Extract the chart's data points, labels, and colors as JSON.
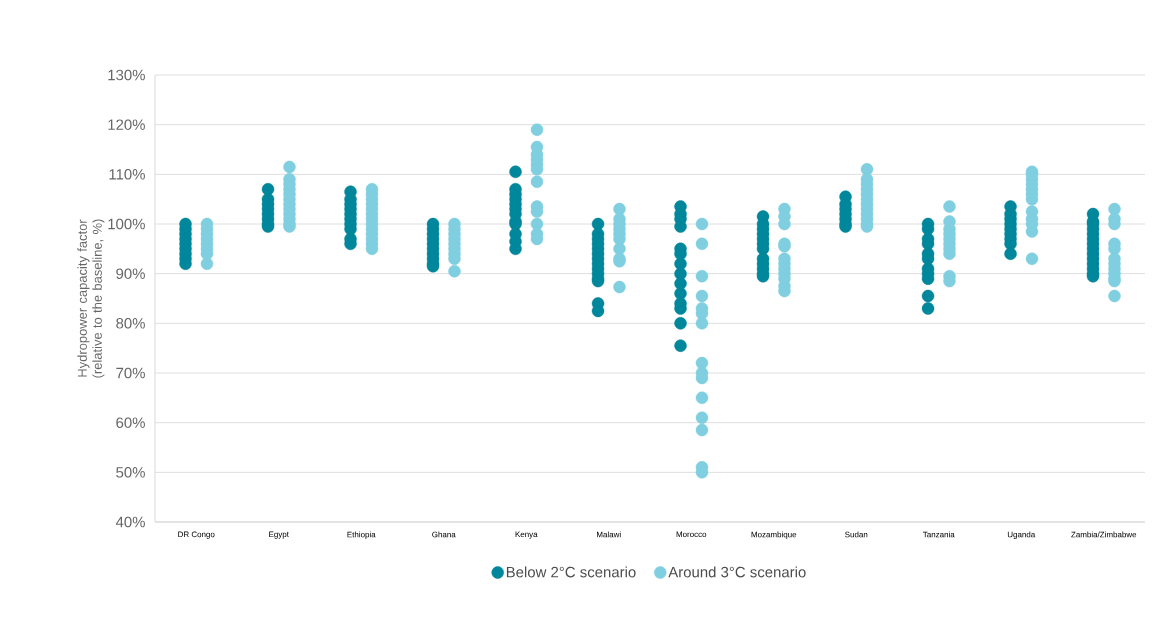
{
  "chart_data": {
    "type": "scatter",
    "ylabel": "Hydropower capacity factor (relative to the baseline, %)",
    "categories": [
      "DR Congo",
      "Egypt",
      "Ethiopia",
      "Ghana",
      "Kenya",
      "Malawi",
      "Morocco",
      "Mozambique",
      "Sudan",
      "Tanzania",
      "Uganda",
      "Zambia/Zimbabwe"
    ],
    "ylim": [
      40,
      130
    ],
    "yticks": [
      {
        "value": 40,
        "label": "40%"
      },
      {
        "value": 50,
        "label": "50%"
      },
      {
        "value": 60,
        "label": "60%"
      },
      {
        "value": 70,
        "label": "70%"
      },
      {
        "value": 80,
        "label": "80%"
      },
      {
        "value": 90,
        "label": "90%"
      },
      {
        "value": 100,
        "label": "100%"
      },
      {
        "value": 110,
        "label": "110%"
      },
      {
        "value": 120,
        "label": "120%"
      },
      {
        "value": 130,
        "label": "130%"
      }
    ],
    "grid": "y",
    "legend": "bottom",
    "marker": "circle",
    "series": [
      {
        "name": "Below 2°C scenario",
        "color": "#00879b",
        "x": [
          "DR Congo",
          "DR Congo",
          "DR Congo",
          "DR Congo",
          "DR Congo",
          "DR Congo",
          "DR Congo",
          "DR Congo",
          "DR Congo",
          "Egypt",
          "Egypt",
          "Egypt",
          "Egypt",
          "Egypt",
          "Egypt",
          "Egypt",
          "Egypt",
          "Ethiopia",
          "Ethiopia",
          "Ethiopia",
          "Ethiopia",
          "Ethiopia",
          "Ethiopia",
          "Ethiopia",
          "Ethiopia",
          "Ethiopia",
          "Ethiopia",
          "Ghana",
          "Ghana",
          "Ghana",
          "Ghana",
          "Ghana",
          "Ghana",
          "Ghana",
          "Ghana",
          "Ghana",
          "Ghana",
          "Kenya",
          "Kenya",
          "Kenya",
          "Kenya",
          "Kenya",
          "Kenya",
          "Kenya",
          "Kenya",
          "Kenya",
          "Kenya",
          "Kenya",
          "Kenya",
          "Malawi",
          "Malawi",
          "Malawi",
          "Malawi",
          "Malawi",
          "Malawi",
          "Malawi",
          "Malawi",
          "Malawi",
          "Malawi",
          "Malawi",
          "Malawi",
          "Malawi",
          "Malawi",
          "Morocco",
          "Morocco",
          "Morocco",
          "Morocco",
          "Morocco",
          "Morocco",
          "Morocco",
          "Morocco",
          "Morocco",
          "Morocco",
          "Morocco",
          "Morocco",
          "Morocco",
          "Morocco",
          "Mozambique",
          "Mozambique",
          "Mozambique",
          "Mozambique",
          "Mozambique",
          "Mozambique",
          "Mozambique",
          "Mozambique",
          "Mozambique",
          "Mozambique",
          "Mozambique",
          "Mozambique",
          "Sudan",
          "Sudan",
          "Sudan",
          "Sudan",
          "Sudan",
          "Sudan",
          "Sudan",
          "Tanzania",
          "Tanzania",
          "Tanzania",
          "Tanzania",
          "Tanzania",
          "Tanzania",
          "Tanzania",
          "Tanzania",
          "Tanzania",
          "Tanzania",
          "Tanzania",
          "Uganda",
          "Uganda",
          "Uganda",
          "Uganda",
          "Uganda",
          "Uganda",
          "Uganda",
          "Uganda",
          "Uganda",
          "Zambia/Zimbabwe",
          "Zambia/Zimbabwe",
          "Zambia/Zimbabwe",
          "Zambia/Zimbabwe",
          "Zambia/Zimbabwe",
          "Zambia/Zimbabwe",
          "Zambia/Zimbabwe",
          "Zambia/Zimbabwe",
          "Zambia/Zimbabwe",
          "Zambia/Zimbabwe",
          "Zambia/Zimbabwe",
          "Zambia/Zimbabwe",
          "Zambia/Zimbabwe",
          "Zambia/Zimbabwe"
        ],
        "values": [
          100,
          99,
          98,
          97,
          96,
          95,
          94,
          93,
          92,
          107,
          105,
          104,
          103,
          102,
          101,
          100,
          99.5,
          106.5,
          105,
          104,
          103,
          102,
          101,
          100,
          99,
          97,
          96,
          100,
          99,
          98,
          97,
          96,
          95,
          94,
          93,
          92,
          91.5,
          110.5,
          107,
          106,
          105,
          104,
          103,
          102,
          100.5,
          100,
          98,
          96.5,
          95,
          100,
          98,
          97,
          96,
          95,
          94,
          93,
          92,
          91,
          90,
          89,
          88.5,
          84,
          82.5,
          103.5,
          102,
          101,
          99.5,
          95,
          94,
          92,
          90,
          88,
          86,
          84,
          83,
          80,
          75.5,
          101.5,
          100,
          99,
          98,
          97,
          96,
          95,
          93,
          92,
          91,
          90,
          89.5,
          105.5,
          104,
          103,
          102,
          101,
          100,
          99.5,
          100,
          99,
          97,
          96,
          94,
          93,
          91,
          90,
          89,
          85.5,
          83,
          103.5,
          102,
          101,
          100,
          99,
          98,
          97,
          96,
          94,
          102,
          100.5,
          100,
          99,
          98,
          97,
          96,
          95,
          94,
          93,
          92,
          91,
          90,
          89.5
        ]
      },
      {
        "name": "Around 3°C scenario",
        "color": "#7fcfe0",
        "x": [
          "DR Congo",
          "DR Congo",
          "DR Congo",
          "DR Congo",
          "DR Congo",
          "DR Congo",
          "DR Congo",
          "DR Congo",
          "Egypt",
          "Egypt",
          "Egypt",
          "Egypt",
          "Egypt",
          "Egypt",
          "Egypt",
          "Egypt",
          "Egypt",
          "Egypt",
          "Egypt",
          "Egypt",
          "Ethiopia",
          "Ethiopia",
          "Ethiopia",
          "Ethiopia",
          "Ethiopia",
          "Ethiopia",
          "Ethiopia",
          "Ethiopia",
          "Ethiopia",
          "Ethiopia",
          "Ethiopia",
          "Ethiopia",
          "Ethiopia",
          "Ghana",
          "Ghana",
          "Ghana",
          "Ghana",
          "Ghana",
          "Ghana",
          "Ghana",
          "Ghana",
          "Ghana",
          "Kenya",
          "Kenya",
          "Kenya",
          "Kenya",
          "Kenya",
          "Kenya",
          "Kenya",
          "Kenya",
          "Kenya",
          "Kenya",
          "Kenya",
          "Kenya",
          "Malawi",
          "Malawi",
          "Malawi",
          "Malawi",
          "Malawi",
          "Malawi",
          "Malawi",
          "Malawi",
          "Malawi",
          "Malawi",
          "Morocco",
          "Morocco",
          "Morocco",
          "Morocco",
          "Morocco",
          "Morocco",
          "Morocco",
          "Morocco",
          "Morocco",
          "Morocco",
          "Morocco",
          "Morocco",
          "Morocco",
          "Morocco",
          "Morocco",
          "Mozambique",
          "Mozambique",
          "Mozambique",
          "Mozambique",
          "Mozambique",
          "Mozambique",
          "Mozambique",
          "Mozambique",
          "Mozambique",
          "Mozambique",
          "Mozambique",
          "Mozambique",
          "Sudan",
          "Sudan",
          "Sudan",
          "Sudan",
          "Sudan",
          "Sudan",
          "Sudan",
          "Sudan",
          "Sudan",
          "Sudan",
          "Sudan",
          "Sudan",
          "Tanzania",
          "Tanzania",
          "Tanzania",
          "Tanzania",
          "Tanzania",
          "Tanzania",
          "Tanzania",
          "Tanzania",
          "Tanzania",
          "Tanzania",
          "Uganda",
          "Uganda",
          "Uganda",
          "Uganda",
          "Uganda",
          "Uganda",
          "Uganda",
          "Uganda",
          "Uganda",
          "Uganda",
          "Uganda",
          "Uganda",
          "Zambia/Zimbabwe",
          "Zambia/Zimbabwe",
          "Zambia/Zimbabwe",
          "Zambia/Zimbabwe",
          "Zambia/Zimbabwe",
          "Zambia/Zimbabwe",
          "Zambia/Zimbabwe",
          "Zambia/Zimbabwe",
          "Zambia/Zimbabwe",
          "Zambia/Zimbabwe",
          "Zambia/Zimbabwe",
          "Zambia/Zimbabwe"
        ],
        "values": [
          100,
          99,
          98,
          97,
          96,
          95,
          94,
          92,
          111.5,
          109,
          108,
          107,
          106,
          105,
          104,
          103,
          102,
          101,
          100,
          99.5,
          107,
          106,
          105,
          104,
          103,
          102,
          101,
          100,
          99,
          98,
          97,
          96,
          95,
          100,
          99,
          98,
          97,
          96,
          95,
          94,
          93,
          90.5,
          119,
          115.5,
          114,
          113,
          112,
          111,
          108.5,
          103.5,
          102.5,
          100,
          98,
          97,
          103,
          101,
          100,
          99,
          98,
          97,
          95,
          93,
          92.5,
          87.3,
          100,
          96,
          89.5,
          85.5,
          83,
          82,
          80,
          72,
          70,
          69,
          65,
          61,
          58.5,
          51,
          50,
          103,
          101.5,
          100,
          96,
          95.5,
          93,
          92,
          91,
          90,
          89,
          87.5,
          86.5,
          111,
          109,
          108,
          107,
          106,
          105,
          104,
          103,
          102,
          101,
          100,
          99.5,
          103.5,
          100.5,
          99,
          98,
          97,
          96,
          95,
          94,
          89.5,
          88.5,
          110.5,
          110,
          109,
          108,
          107,
          106,
          105,
          102.5,
          101,
          100,
          98.5,
          93,
          103,
          101,
          100,
          96,
          95,
          93,
          92,
          91,
          90,
          89,
          88.5,
          85.5
        ]
      }
    ]
  }
}
